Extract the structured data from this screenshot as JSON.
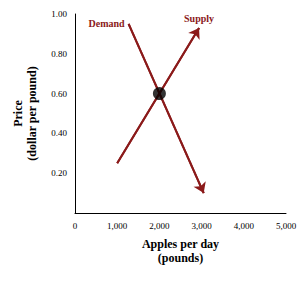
{
  "chart_data": {
    "type": "line",
    "x_label": "Apples per day\n(pounds)",
    "y_label": "Price\n(dollar per pound)",
    "xlim": [
      0,
      5000
    ],
    "xticks": [
      0,
      {
        "value": 1000,
        "label": "1,000"
      },
      {
        "value": 2000,
        "label": "2,000"
      },
      {
        "value": 3000,
        "label": "3,000"
      },
      {
        "value": 4000,
        "label": "4,000"
      },
      {
        "value": 5000,
        "label": "5,000"
      }
    ],
    "ylim": [
      0,
      1
    ],
    "yticks": [
      {
        "value": 0.2,
        "label": "0.20"
      },
      {
        "value": 0.4,
        "label": "0.40"
      },
      {
        "value": 0.6,
        "label": "0.60"
      },
      {
        "value": 0.8,
        "label": "0.80"
      },
      {
        "value": 1,
        "label": "1.00"
      }
    ],
    "grid": false,
    "series": [
      {
        "name": "Demand",
        "type": "line",
        "color": "#8b1a1a",
        "line_style": "solid",
        "x": [
          1270,
          3050
        ],
        "values": [
          0.95,
          0.1
        ]
      },
      {
        "name": "Supply",
        "type": "line",
        "color": "#8b1a1a",
        "line_style": "solid",
        "x": [
          1000,
          2940
        ],
        "values": [
          0.25,
          0.93
        ]
      },
      {
        "type": "scatter",
        "color": "#000000",
        "marker": "circle",
        "x": [
          2000
        ],
        "values": [
          0.6
        ]
      }
    ]
  }
}
